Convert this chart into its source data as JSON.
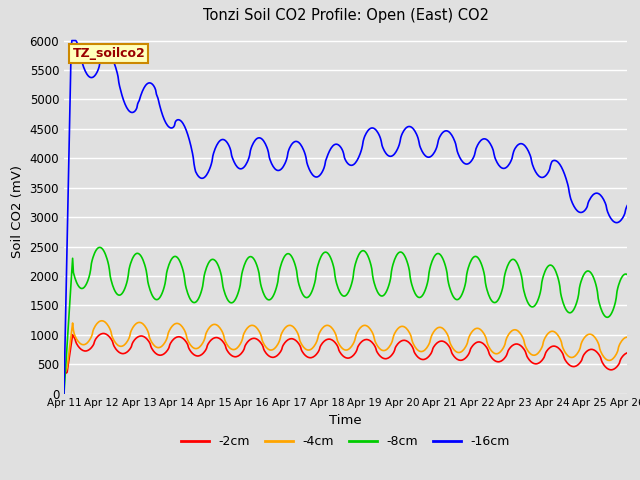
{
  "title": "Tonzi Soil CO2 Profile: Open (East) CO2",
  "ylabel": "Soil CO2 (mV)",
  "xlabel": "Time",
  "watermark": "TZ_soilco2",
  "ylim": [
    0,
    6200
  ],
  "yticks": [
    0,
    500,
    1000,
    1500,
    2000,
    2500,
    3000,
    3500,
    4000,
    4500,
    5000,
    5500,
    6000
  ],
  "background_color": "#e0e0e0",
  "line_colors": {
    "-2cm": "#ff0000",
    "-4cm": "#ffa500",
    "-8cm": "#00cc00",
    "-16cm": "#0000ff"
  },
  "tick_labels": [
    "Apr 11",
    "Apr 12",
    "Apr 13",
    "Apr 14",
    "Apr 15",
    "Apr 16",
    "Apr 17",
    "Apr 18",
    "Apr 19",
    "Apr 20",
    "Apr 21",
    "Apr 22",
    "Apr 23",
    "Apr 24",
    "Apr 25",
    "Apr 26"
  ],
  "n_points": 720,
  "figsize": [
    6.4,
    4.8
  ],
  "dpi": 100
}
